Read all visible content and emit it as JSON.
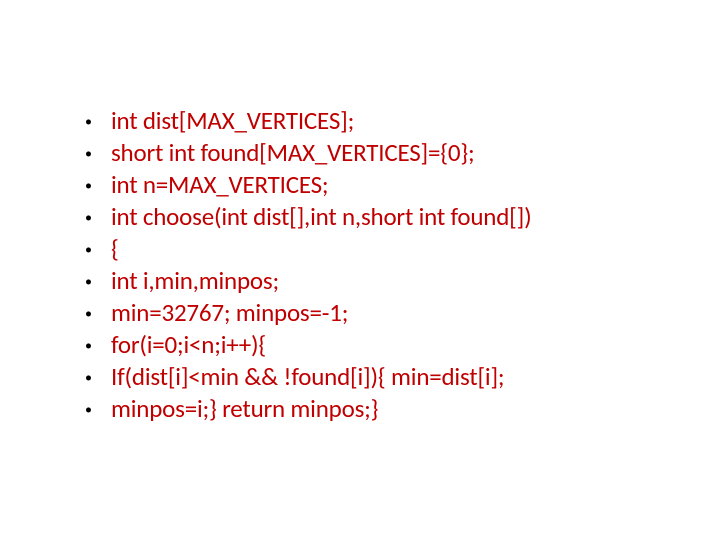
{
  "slide": {
    "bullet_marker": "•",
    "text_color": "#c00000",
    "marker_color": "#000000",
    "background_color": "#ffffff",
    "font_size": 25,
    "font_family": "Calibri",
    "lines": [
      "int dist[MAX_VERTICES];",
      "short int found[MAX_VERTICES]={0};",
      "int n=MAX_VERTICES;",
      "int choose(int dist[],int n,short int found[])",
      "{",
      "int i,min,minpos;",
      "min=32767; minpos=-1;",
      "for(i=0;i<n;i++){",
      "If(dist[i]<min  && !found[i]){ min=dist[i];",
      "minpos=i;}    return minpos;}"
    ]
  }
}
